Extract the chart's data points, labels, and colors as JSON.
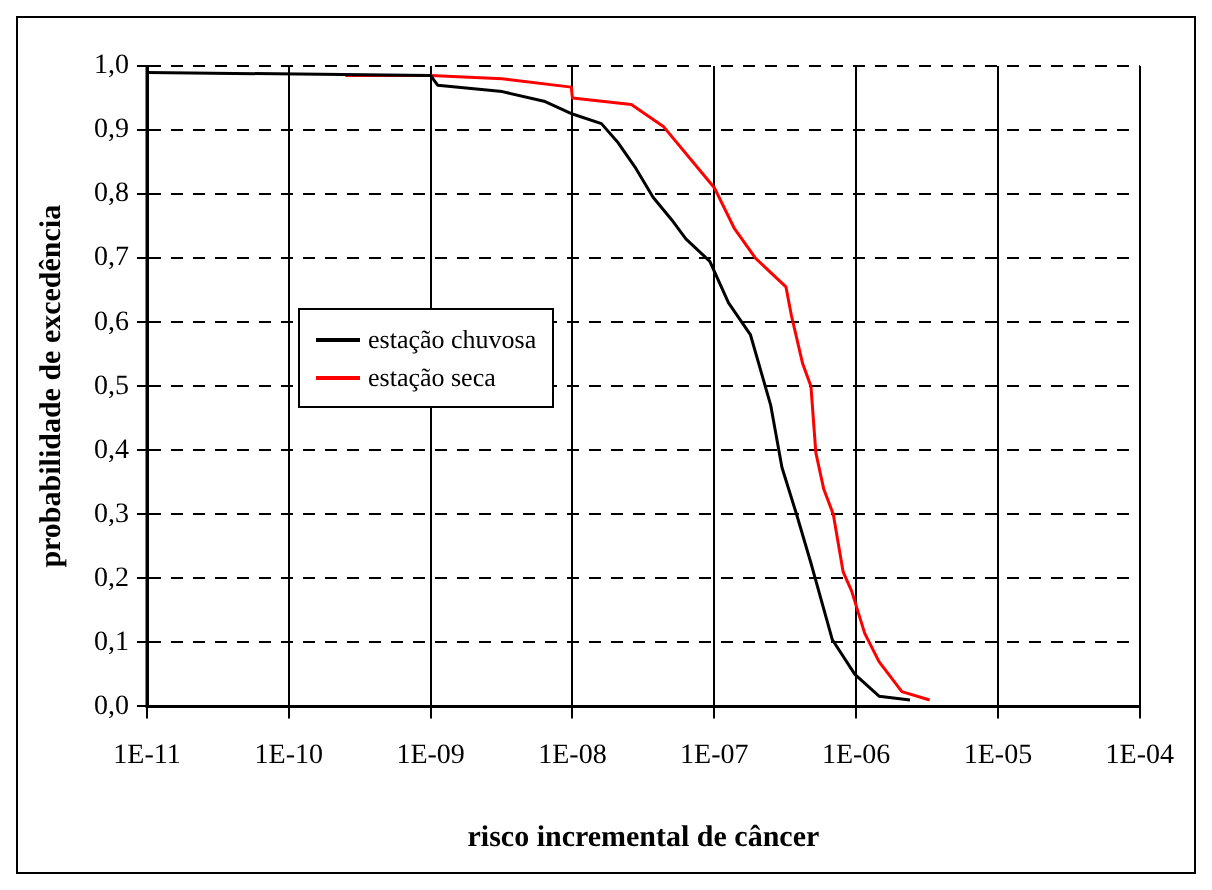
{
  "chart_data": {
    "type": "line",
    "xlabel": "risco incremental de câncer",
    "ylabel": "probabilidade de excedência",
    "log": "x",
    "xlim": [
      1e-11,
      0.0001
    ],
    "xticks": [
      {
        "value": 1e-11,
        "label": "1E-11"
      },
      {
        "value": 1e-10,
        "label": "1E-10"
      },
      {
        "value": 1e-09,
        "label": "1E-09"
      },
      {
        "value": 1e-08,
        "label": "1E-08"
      },
      {
        "value": 1e-07,
        "label": "1E-07"
      },
      {
        "value": 1e-06,
        "label": "1E-06"
      },
      {
        "value": 1e-05,
        "label": "1E-05"
      },
      {
        "value": 0.0001,
        "label": "1E-04"
      }
    ],
    "ylim": [
      0,
      1
    ],
    "yticks": [
      {
        "value": 0,
        "label": "0,0"
      },
      {
        "value": 0.1,
        "label": "0,1"
      },
      {
        "value": 0.2,
        "label": "0,2"
      },
      {
        "value": 0.3,
        "label": "0,3"
      },
      {
        "value": 0.4,
        "label": "0,4"
      },
      {
        "value": 0.5,
        "label": "0,5"
      },
      {
        "value": 0.6,
        "label": "0,6"
      },
      {
        "value": 0.7,
        "label": "0,7"
      },
      {
        "value": 0.8,
        "label": "0,8"
      },
      {
        "value": 0.9,
        "label": "0,9"
      },
      {
        "value": 1,
        "label": "1,0"
      }
    ],
    "grid": true,
    "legend": "left",
    "marker": "none",
    "line_style": "solid",
    "series": [
      {
        "name": "estação chuvosa",
        "color": "#000000",
        "x": [
          1e-11,
          1e-09,
          1.12e-09,
          3.2e-09,
          6.3e-09,
          1e-08,
          1.6e-08,
          2.1e-08,
          2.8e-08,
          3.7e-08,
          5e-08,
          6.3e-08,
          9.3e-08,
          1.26e-07,
          1.8e-07,
          2.5e-07,
          3e-07,
          3.8e-07,
          4.8e-07,
          6.8e-07,
          9.8e-07,
          1.45e-06,
          2.4e-06
        ],
        "values": [
          0.99,
          0.985,
          0.97,
          0.96,
          0.945,
          0.925,
          0.91,
          0.88,
          0.84,
          0.795,
          0.76,
          0.73,
          0.695,
          0.63,
          0.58,
          0.47,
          0.373,
          0.3,
          0.224,
          0.104,
          0.05,
          0.016,
          0.01
        ]
      },
      {
        "name": "estação seca",
        "color": "#ff0000",
        "x": [
          2.5e-10,
          1e-09,
          3.2e-09,
          9.8e-09,
          1e-08,
          2.6e-08,
          4.4e-08,
          1e-07,
          1.38e-07,
          1.95e-07,
          3.2e-07,
          3.5e-07,
          4.2e-07,
          4.8e-07,
          5.2e-07,
          5.9e-07,
          6.9e-07,
          8.1e-07,
          9.3e-07,
          1.15e-06,
          1.45e-06,
          2.1e-06,
          3.3e-06
        ],
        "values": [
          0.985,
          0.985,
          0.98,
          0.967,
          0.95,
          0.94,
          0.905,
          0.81,
          0.747,
          0.7,
          0.655,
          0.61,
          0.535,
          0.5,
          0.396,
          0.34,
          0.3,
          0.21,
          0.18,
          0.114,
          0.07,
          0.023,
          0.01
        ]
      }
    ]
  }
}
